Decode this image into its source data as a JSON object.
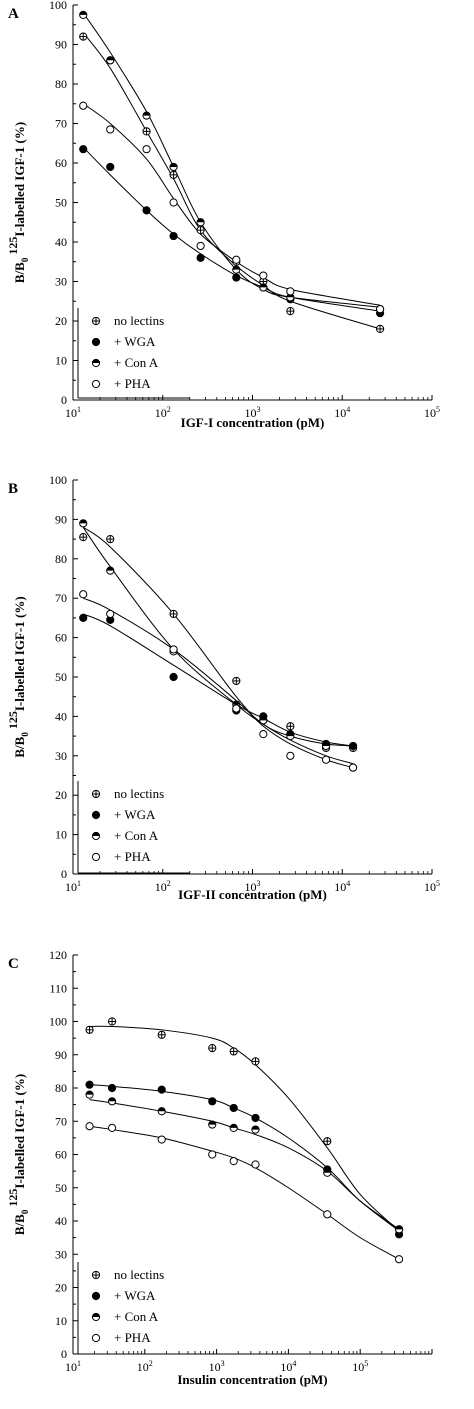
{
  "chart_data": [
    {
      "type": "scatter",
      "panel_label": "A",
      "xlabel": "IGF-I concentration (pM)",
      "ylabel_parts": [
        "B/B",
        "0",
        "125",
        "I-labelled IGF-1 (%)"
      ],
      "xscale": "log",
      "xlim": [
        10,
        100000
      ],
      "ylim": [
        0,
        100
      ],
      "yticks": [
        "0",
        "10",
        "20",
        "30",
        "40",
        "50",
        "60",
        "70",
        "80",
        "90",
        "100"
      ],
      "xtick_exps": [
        "1",
        "2",
        "3",
        "4",
        "5"
      ],
      "grid": false,
      "legend_placement": "bottom-left",
      "series": [
        {
          "legend": "no lectins",
          "marker": "crossed",
          "x": [
            13,
            26,
            66,
            132,
            264,
            660,
            1320,
            2640,
            26400
          ],
          "y": [
            92,
            86,
            68,
            57,
            43,
            35,
            30,
            22.5,
            18
          ],
          "fit": [
            [
              13,
              93
            ],
            [
              26,
              84
            ],
            [
              66,
              68
            ],
            [
              132,
              56
            ],
            [
              264,
              43
            ],
            [
              660,
              34
            ],
            [
              1320,
              29
            ],
            [
              2640,
              25
            ],
            [
              26400,
              18
            ]
          ]
        },
        {
          "legend": "+ WGA",
          "marker": "filled",
          "x": [
            13,
            26,
            66,
            132,
            264,
            660,
            1320,
            2640,
            26400
          ],
          "y": [
            63.5,
            59,
            48,
            41.5,
            36,
            31,
            28.5,
            25.5,
            22
          ],
          "fit": [
            [
              13,
              64
            ],
            [
              26,
              57
            ],
            [
              66,
              48
            ],
            [
              132,
              42
            ],
            [
              264,
              37
            ],
            [
              660,
              31.5
            ],
            [
              1320,
              28.5
            ],
            [
              2640,
              26
            ],
            [
              26400,
              22.5
            ]
          ]
        },
        {
          "legend": "+ Con A",
          "marker": "half",
          "x": [
            13,
            26,
            66,
            132,
            264,
            660,
            1320,
            2640,
            26400
          ],
          "y": [
            97.5,
            86,
            72,
            59,
            45,
            33,
            28.5,
            26,
            23
          ],
          "fit": [
            [
              13,
              98
            ],
            [
              26,
              88
            ],
            [
              66,
              73
            ],
            [
              132,
              59
            ],
            [
              264,
              45
            ],
            [
              660,
              33
            ],
            [
              1320,
              28
            ],
            [
              2640,
              26
            ],
            [
              26400,
              23.5
            ]
          ]
        },
        {
          "legend": "+ PHA",
          "marker": "open",
          "x": [
            13,
            26,
            66,
            132,
            264,
            660,
            1320,
            2640,
            26400
          ],
          "y": [
            74.5,
            68.5,
            63.5,
            50,
            39,
            35.5,
            31.5,
            27.5,
            23
          ],
          "fit": [
            [
              13,
              75
            ],
            [
              26,
              70
            ],
            [
              66,
              61
            ],
            [
              132,
              51
            ],
            [
              264,
              42
            ],
            [
              660,
              35
            ],
            [
              1320,
              31
            ],
            [
              2640,
              28
            ],
            [
              26400,
              24
            ]
          ]
        }
      ]
    },
    {
      "type": "scatter",
      "panel_label": "B",
      "xlabel": "IGF-II concentration (pM)",
      "ylabel_parts": [
        "B/B",
        "0",
        "125",
        "I-labelled IGF-1 (%)"
      ],
      "xscale": "log",
      "xlim": [
        10,
        100000
      ],
      "ylim": [
        0,
        100
      ],
      "yticks": [
        "0",
        "10",
        "20",
        "30",
        "40",
        "50",
        "60",
        "70",
        "80",
        "90",
        "100"
      ],
      "xtick_exps": [
        "1",
        "2",
        "3",
        "4",
        "5"
      ],
      "grid": false,
      "legend_placement": "bottom-left",
      "series": [
        {
          "legend": "no lectins",
          "marker": "crossed",
          "x": [
            13,
            26,
            132,
            660,
            1320,
            2640,
            6600,
            13200
          ],
          "y": [
            85.5,
            85,
            66,
            49,
            39,
            37.5,
            32,
            32
          ],
          "fit": [
            [
              13,
              88
            ],
            [
              26,
              83
            ],
            [
              132,
              66
            ],
            [
              660,
              45
            ],
            [
              1320,
              38
            ],
            [
              2640,
              35
            ],
            [
              6600,
              33
            ],
            [
              13200,
              32.5
            ]
          ]
        },
        {
          "legend": "+ WGA",
          "marker": "filled",
          "x": [
            13,
            26,
            132,
            660,
            1320,
            2640,
            6600,
            13200
          ],
          "y": [
            65,
            64.5,
            50,
            41.5,
            40,
            35.5,
            33,
            32.5
          ],
          "fit": [
            [
              13,
              66
            ],
            [
              26,
              63
            ],
            [
              132,
              53
            ],
            [
              660,
              43
            ],
            [
              1320,
              39.5
            ],
            [
              2640,
              36
            ],
            [
              6600,
              33.5
            ],
            [
              13200,
              32.5
            ]
          ]
        },
        {
          "legend": "+ Con A",
          "marker": "half",
          "x": [
            13,
            26,
            132,
            660,
            1320,
            2640,
            6600,
            13200
          ],
          "y": [
            89,
            77,
            56.5,
            43,
            39,
            35,
            32.5,
            27
          ],
          "fit": [
            [
              13,
              88
            ],
            [
              26,
              78
            ],
            [
              132,
              57
            ],
            [
              660,
              43
            ],
            [
              1320,
              38
            ],
            [
              2640,
              34
            ],
            [
              6600,
              30
            ],
            [
              13200,
              28
            ]
          ]
        },
        {
          "legend": "+ PHA",
          "marker": "open",
          "x": [
            13,
            26,
            132,
            660,
            1320,
            2640,
            6600,
            13200
          ],
          "y": [
            71,
            66,
            57,
            42,
            35.5,
            30,
            29,
            27
          ],
          "fit": [
            [
              13,
              70
            ],
            [
              26,
              67
            ],
            [
              132,
              57
            ],
            [
              660,
              44
            ],
            [
              1320,
              37.5
            ],
            [
              2640,
              33
            ],
            [
              6600,
              29
            ],
            [
              13200,
              27
            ]
          ]
        }
      ]
    },
    {
      "type": "scatter",
      "panel_label": "C",
      "xlabel": "Insulin concentration (pM)",
      "ylabel_parts": [
        "B/B",
        "0",
        "125",
        "I-labelled IGF-1 (%)"
      ],
      "xscale": "log",
      "xlim": [
        10,
        1000000
      ],
      "ylim": [
        0,
        120
      ],
      "yticks": [
        "0",
        "10",
        "20",
        "30",
        "40",
        "50",
        "60",
        "70",
        "80",
        "90",
        "100",
        "110",
        "120"
      ],
      "xtick_exps": [
        "1",
        "2",
        "3",
        "4",
        "5"
      ],
      "grid": false,
      "legend_placement": "bottom-left",
      "series": [
        {
          "legend": "no lectins",
          "marker": "crossed",
          "x": [
            17,
            35,
            172,
            870,
            1730,
            3480,
            34800,
            348000
          ],
          "y": [
            97.5,
            100,
            96,
            92,
            91,
            88,
            64,
            37.5
          ],
          "fit": [
            [
              17,
              98.5
            ],
            [
              35,
              98.5
            ],
            [
              172,
              97.5
            ],
            [
              870,
              95
            ],
            [
              1730,
              92
            ],
            [
              3480,
              87
            ],
            [
              10000,
              77
            ],
            [
              34800,
              62
            ],
            [
              100000,
              48
            ],
            [
              348000,
              37
            ]
          ]
        },
        {
          "legend": "+ WGA",
          "marker": "filled",
          "x": [
            17,
            35,
            172,
            870,
            1730,
            3480,
            34800,
            348000
          ],
          "y": [
            81,
            80,
            79.5,
            76,
            74,
            71,
            55.5,
            36
          ],
          "fit": [
            [
              17,
              81
            ],
            [
              35,
              80.5
            ],
            [
              172,
              79
            ],
            [
              870,
              76.5
            ],
            [
              1730,
              74
            ],
            [
              3480,
              71
            ],
            [
              10000,
              65
            ],
            [
              34800,
              56
            ],
            [
              100000,
              46
            ],
            [
              348000,
              37
            ]
          ]
        },
        {
          "legend": "+ Con A",
          "marker": "half",
          "x": [
            17,
            35,
            172,
            870,
            1730,
            3480,
            34800,
            348000
          ],
          "y": [
            78,
            76,
            73,
            69,
            68,
            67.5,
            54.5,
            37.5
          ],
          "fit": [
            [
              17,
              76.5
            ],
            [
              35,
              75.5
            ],
            [
              172,
              73
            ],
            [
              870,
              70
            ],
            [
              1730,
              68
            ],
            [
              3480,
              66
            ],
            [
              10000,
              62
            ],
            [
              34800,
              55
            ],
            [
              100000,
              46
            ],
            [
              348000,
              37.5
            ]
          ]
        },
        {
          "legend": "+ PHA",
          "marker": "open",
          "x": [
            17,
            35,
            172,
            870,
            1730,
            3480,
            34800,
            348000
          ],
          "y": [
            68.5,
            68,
            64.5,
            60,
            58,
            57,
            42,
            28.5
          ],
          "fit": [
            [
              17,
              68.5
            ],
            [
              35,
              67.5
            ],
            [
              172,
              65
            ],
            [
              870,
              61
            ],
            [
              1730,
              59
            ],
            [
              3480,
              56
            ],
            [
              10000,
              50
            ],
            [
              34800,
              42
            ],
            [
              100000,
              35
            ],
            [
              348000,
              28.5
            ]
          ]
        }
      ]
    }
  ]
}
